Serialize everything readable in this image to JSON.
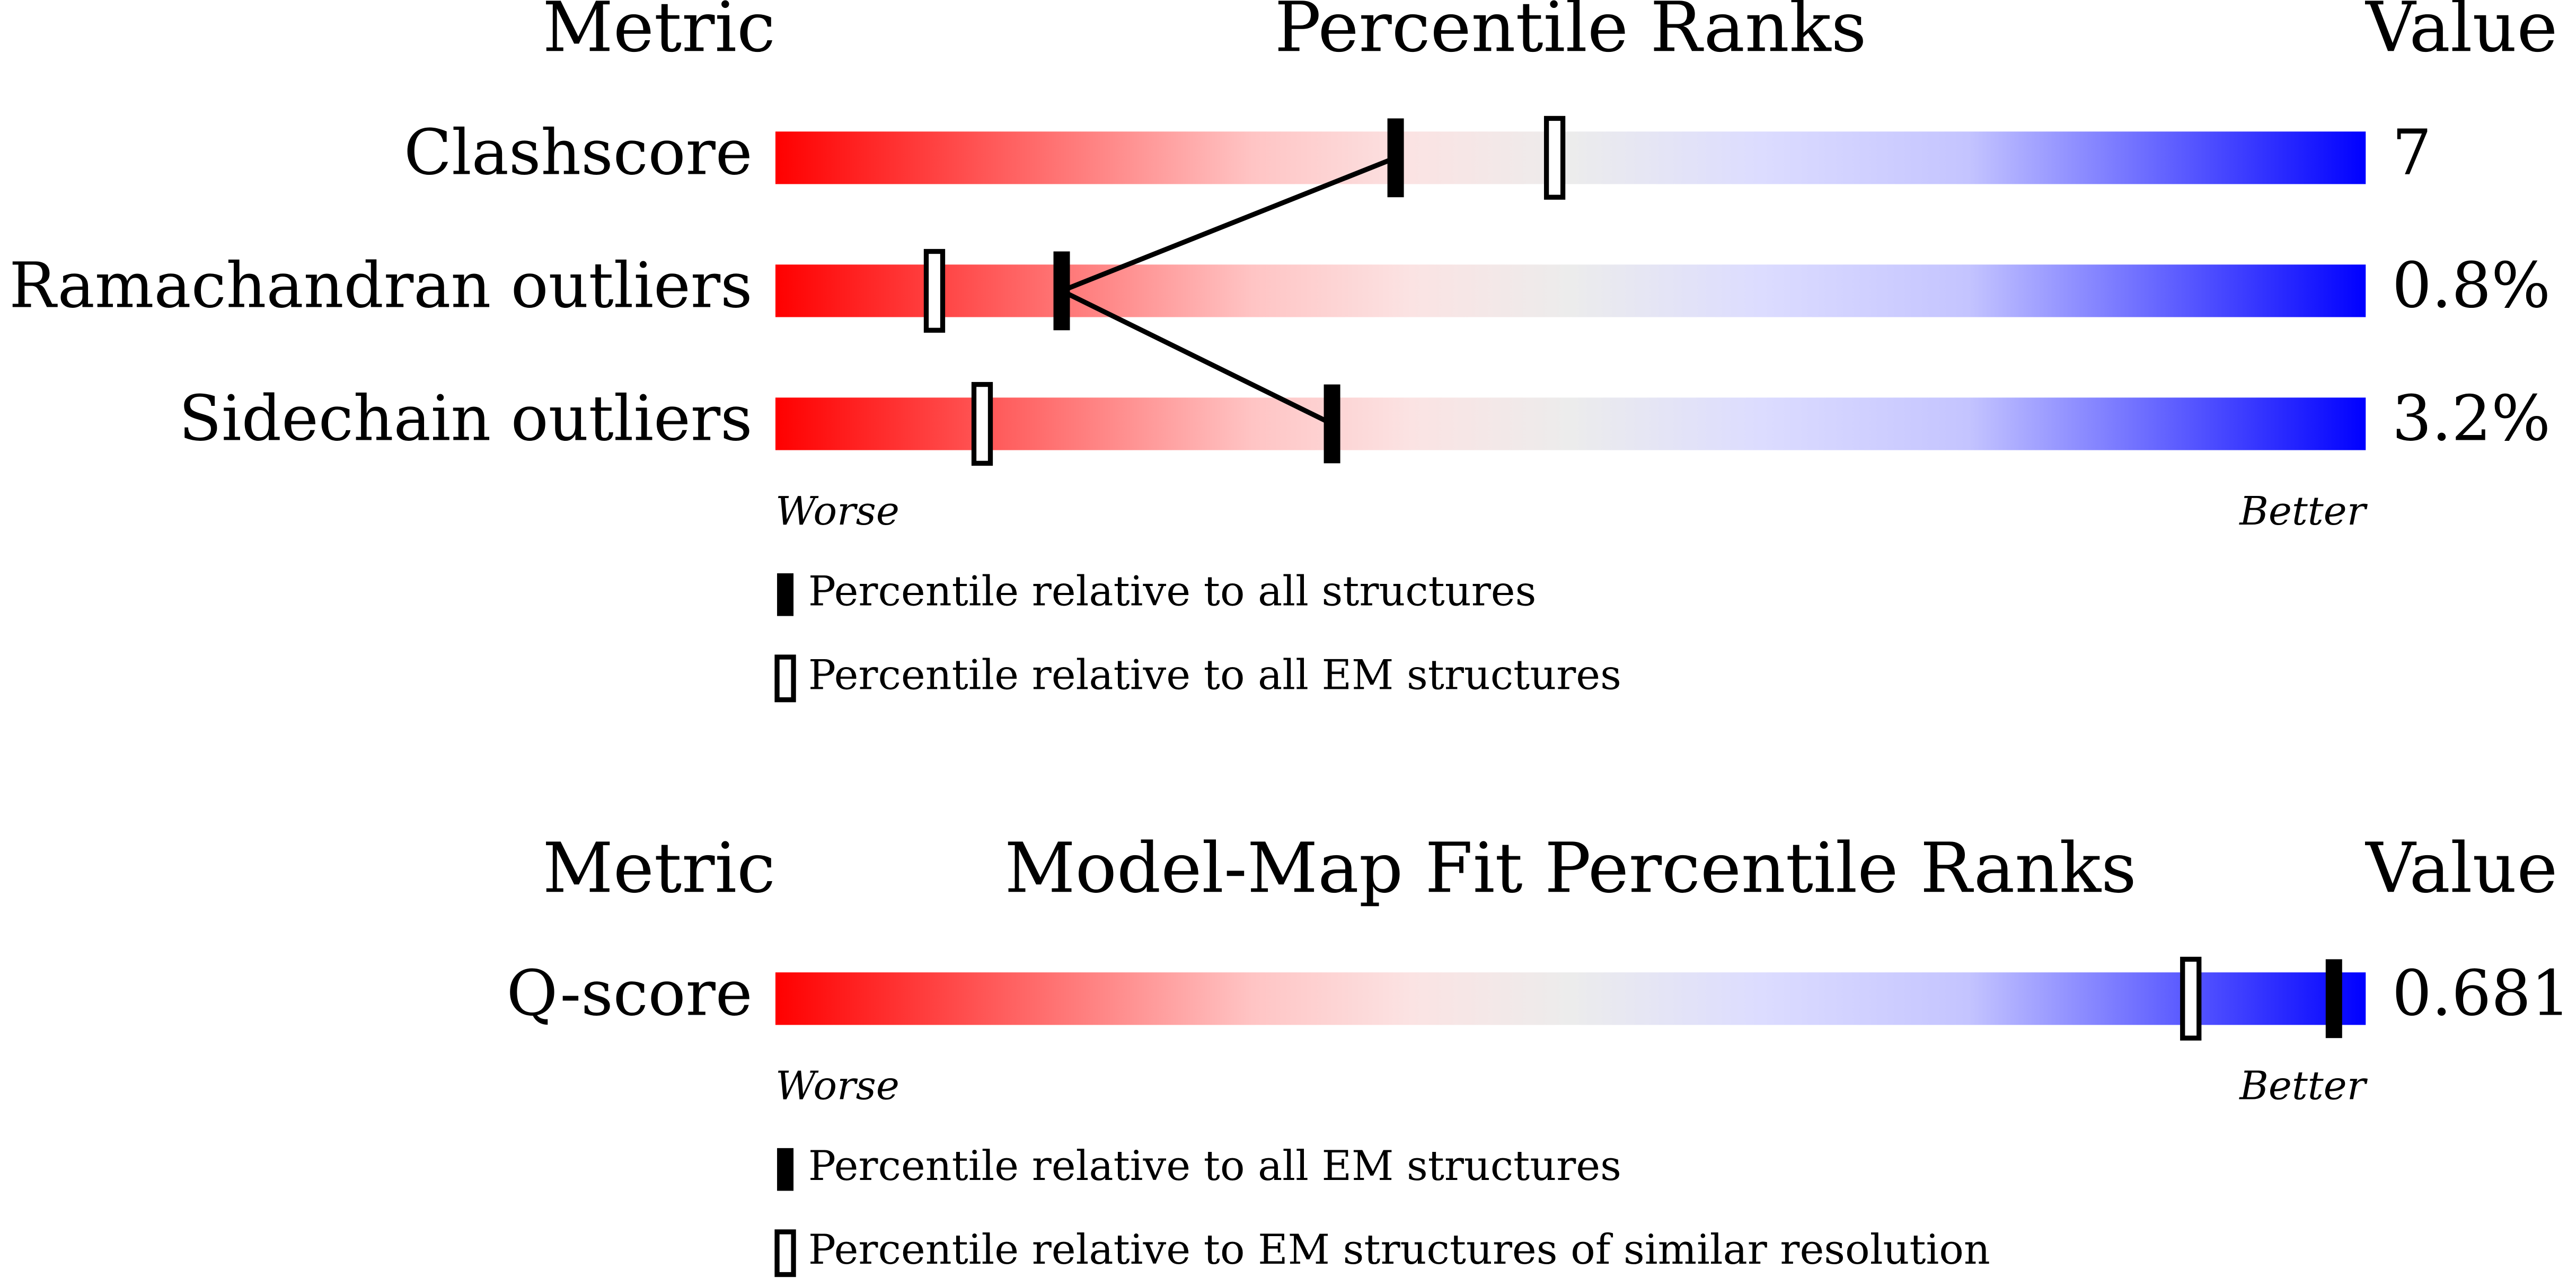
{
  "chart_data": [
    {
      "type": "slider",
      "title": "Percentile Ranks",
      "metric_header": "Metric",
      "value_header": "Value",
      "metrics": [
        "Clashscore",
        "Ramachandran outliers",
        "Sidechain outliers"
      ],
      "metric_values": [
        "7",
        "0.8%",
        "3.2%"
      ],
      "xlim": [
        0,
        100
      ],
      "low_label": "Worse",
      "high_label": "Better",
      "connect": true,
      "series": [
        {
          "name": "Percentile relative to all structures",
          "style": "filled",
          "color": "#000000",
          "values": [
            39,
            18,
            35
          ]
        },
        {
          "name": "Percentile relative to all EM structures",
          "style": "open",
          "color": "#000000",
          "values": [
            49,
            10,
            13
          ]
        }
      ]
    },
    {
      "type": "slider",
      "title": "Model-Map Fit Percentile Ranks",
      "metric_header": "Metric",
      "value_header": "Value",
      "metrics": [
        "Q-score"
      ],
      "metric_values": [
        "0.681"
      ],
      "xlim": [
        0,
        100
      ],
      "low_label": "Worse",
      "high_label": "Better",
      "connect": true,
      "series": [
        {
          "name": "Percentile relative to all EM structures",
          "style": "filled",
          "color": "#000000",
          "values": [
            98
          ]
        },
        {
          "name": "Percentile relative to EM structures of similar resolution",
          "style": "open",
          "color": "#000000",
          "values": [
            89
          ]
        }
      ]
    }
  ]
}
